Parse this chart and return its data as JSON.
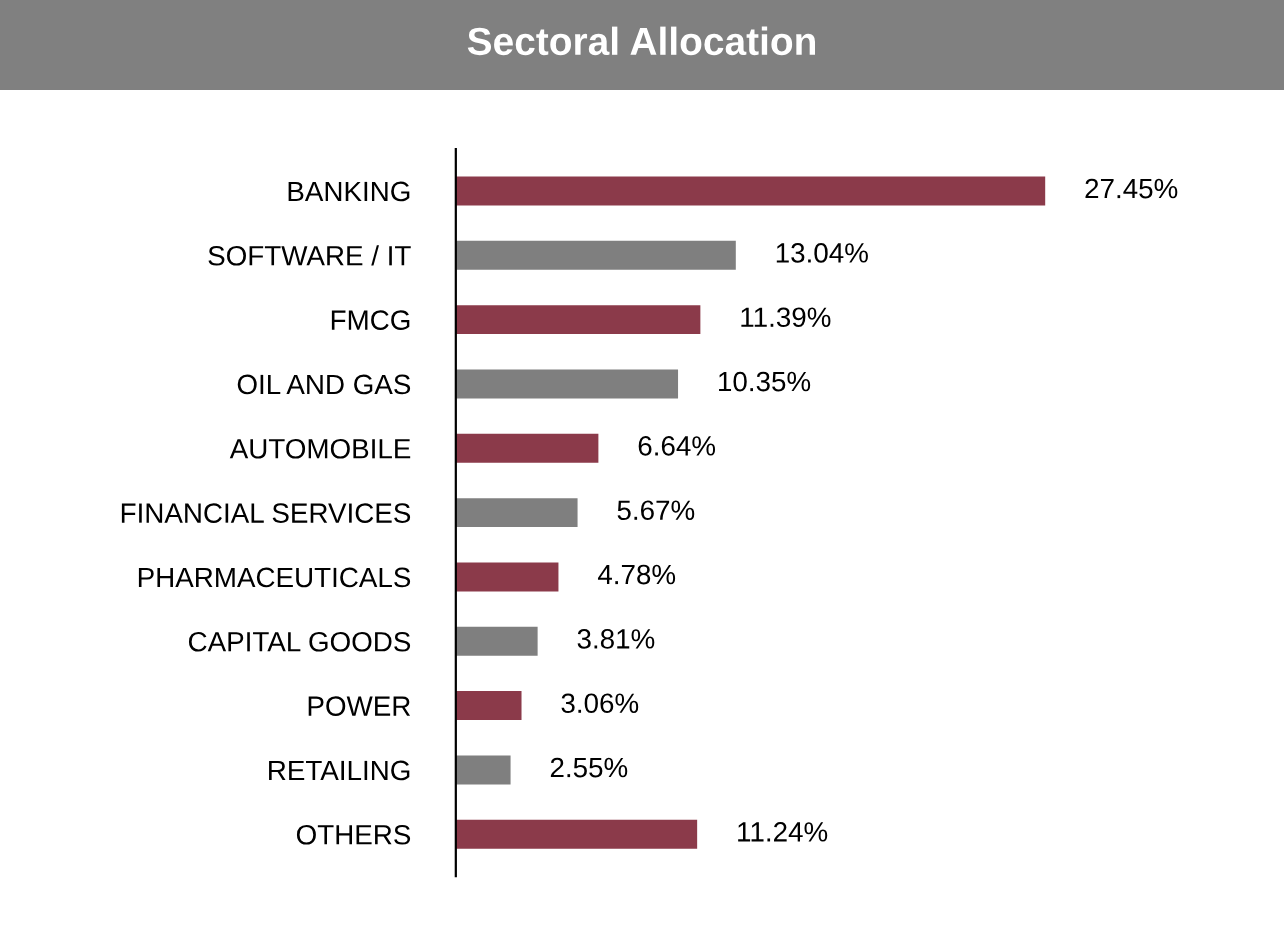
{
  "chart_data": {
    "type": "bar",
    "orientation": "horizontal",
    "title": "Sectoral Allocation",
    "categories": [
      "BANKING",
      "SOFTWARE / IT",
      "FMCG",
      "OIL AND GAS",
      "AUTOMOBILE",
      "FINANCIAL SERVICES",
      "PHARMACEUTICALS",
      "CAPITAL GOODS",
      "POWER",
      "RETAILING",
      "OTHERS"
    ],
    "values": [
      27.45,
      13.04,
      11.39,
      10.35,
      6.64,
      5.67,
      4.78,
      3.81,
      3.06,
      2.55,
      11.24
    ],
    "colors": [
      "#8b3a4a",
      "#7f7f7f",
      "#8b3a4a",
      "#7f7f7f",
      "#8b3a4a",
      "#7f7f7f",
      "#8b3a4a",
      "#7f7f7f",
      "#8b3a4a",
      "#7f7f7f",
      "#8b3a4a"
    ],
    "value_labels": [
      "27.45%",
      "13.04%",
      "11.39%",
      "10.35%",
      "6.64%",
      "5.67%",
      "4.78%",
      "3.81%",
      "3.06%",
      "2.55%",
      "11.24%"
    ],
    "grid": false,
    "legend": false
  }
}
